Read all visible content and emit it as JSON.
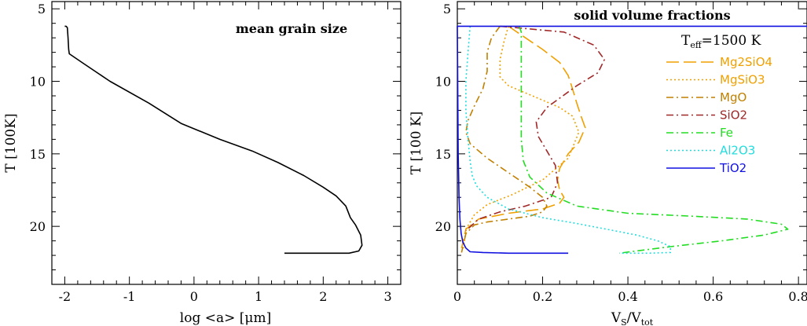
{
  "chart_data": [
    {
      "type": "line",
      "title": "mean grain size",
      "xlabel": "log <a> [μm]",
      "ylabel": "T [100K]",
      "xlim": [
        -2.2,
        3.2
      ],
      "ylim": [
        24,
        4.5
      ],
      "y_inverted": true,
      "xticks": [
        -2,
        -1,
        0,
        1,
        2,
        3
      ],
      "yticks": [
        5,
        10,
        15,
        20
      ],
      "grid": false,
      "series": [
        {
          "color": "#000000",
          "dash": "solid",
          "x": [
            -2.0,
            -1.98,
            -1.96,
            -1.95,
            -1.94,
            -1.93,
            -1.7,
            -1.3,
            -0.7,
            -0.2,
            0.4,
            0.9,
            1.3,
            1.7,
            2.0,
            2.2,
            2.35,
            2.42,
            2.5,
            2.58,
            2.6,
            2.55,
            2.4,
            2.0,
            1.4
          ],
          "y": [
            6.2,
            6.2,
            6.3,
            7.0,
            7.8,
            8.1,
            8.8,
            10.0,
            11.5,
            12.9,
            14.0,
            14.8,
            15.6,
            16.5,
            17.3,
            17.9,
            18.6,
            19.4,
            19.9,
            20.6,
            21.3,
            21.7,
            21.85,
            21.85,
            21.85
          ]
        }
      ]
    },
    {
      "type": "line",
      "title": "solid volume fractions",
      "annotation": "T_eff=1500 K",
      "annotation_main": "T",
      "annotation_sub": "eff",
      "annotation_rest": "=1500 K",
      "xlabel": "V_S/V_tot",
      "xlabel_main": "V",
      "xlabel_sub1": "S",
      "xlabel_mid": "/V",
      "xlabel_sub2": "tot",
      "ylabel": "T [100 K]",
      "xlim": [
        0,
        0.82
      ],
      "ylim": [
        24,
        4.5
      ],
      "y_inverted": true,
      "xticks": [
        0,
        0.2,
        0.4,
        0.6,
        0.8
      ],
      "yticks": [
        5,
        10,
        15,
        20
      ],
      "legend_position": "right",
      "grid": false,
      "series": [
        {
          "name": "Mg2SiO4",
          "color": "#f0a000",
          "dash": "longdash",
          "x": [
            0.12,
            0.16,
            0.2,
            0.24,
            0.26,
            0.27,
            0.28,
            0.29,
            0.3,
            0.285,
            0.26,
            0.24,
            0.235,
            0.24,
            0.25,
            0.24,
            0.2,
            0.12,
            0.05,
            0.02,
            0.01
          ],
          "y": [
            6.2,
            7.0,
            7.8,
            8.7,
            9.6,
            10.5,
            11.5,
            12.4,
            13.2,
            14.2,
            15.0,
            16.0,
            16.8,
            17.5,
            18.0,
            18.4,
            18.8,
            19.1,
            19.5,
            20.2,
            21.5
          ]
        },
        {
          "name": "MgSiO3",
          "color": "#f0a000",
          "dash": "dotted",
          "x": [
            0.12,
            0.11,
            0.1,
            0.1,
            0.12,
            0.16,
            0.2,
            0.24,
            0.27,
            0.285,
            0.26,
            0.2,
            0.13,
            0.07,
            0.04,
            0.02,
            0.015
          ],
          "y": [
            6.2,
            7.2,
            8.5,
            9.7,
            10.3,
            10.8,
            11.3,
            11.8,
            12.4,
            13.5,
            15.3,
            16.8,
            17.8,
            18.5,
            19.2,
            20.2,
            21.5
          ]
        },
        {
          "name": "MgO",
          "color": "#c08000",
          "dash": "dashdot",
          "x": [
            0.1,
            0.08,
            0.07,
            0.07,
            0.06,
            0.04,
            0.025,
            0.02,
            0.03,
            0.07,
            0.12,
            0.17,
            0.2,
            0.21,
            0.2,
            0.17,
            0.12,
            0.07,
            0.04,
            0.02,
            0.01
          ],
          "y": [
            6.2,
            7.0,
            8.0,
            9.3,
            10.5,
            11.7,
            12.7,
            13.5,
            14.3,
            15.3,
            16.3,
            17.3,
            18.0,
            18.6,
            19.0,
            19.3,
            19.5,
            19.7,
            19.9,
            20.5,
            21.8
          ]
        },
        {
          "name": "SiO2",
          "color": "#a02828",
          "dash": "dashdot",
          "x": [
            0.1,
            0.25,
            0.32,
            0.345,
            0.33,
            0.28,
            0.21,
            0.185,
            0.19,
            0.21,
            0.23,
            0.235,
            0.22,
            0.16,
            0.1,
            0.05,
            0.02
          ],
          "y": [
            6.2,
            6.6,
            7.5,
            8.5,
            9.4,
            10.3,
            11.8,
            12.8,
            13.8,
            14.8,
            15.8,
            17.0,
            18.0,
            18.6,
            19.0,
            19.5,
            20.3
          ]
        },
        {
          "name": "Fe",
          "color": "#22dd22",
          "dash": "dashdot",
          "x": [
            0.145,
            0.15,
            0.15,
            0.15,
            0.15,
            0.15,
            0.155,
            0.17,
            0.21,
            0.28,
            0.4,
            0.55,
            0.68,
            0.76,
            0.775,
            0.72,
            0.62,
            0.5,
            0.42,
            0.38
          ],
          "y": [
            6.2,
            6.6,
            8.0,
            10.0,
            12.0,
            14.0,
            15.5,
            16.6,
            17.7,
            18.6,
            19.1,
            19.3,
            19.5,
            19.85,
            20.2,
            20.6,
            21.0,
            21.4,
            21.7,
            21.85
          ]
        },
        {
          "name": "Al2O3",
          "color": "#22dddd",
          "dash": "dotted",
          "x": [
            0.03,
            0.025,
            0.02,
            0.02,
            0.025,
            0.03,
            0.035,
            0.045,
            0.07,
            0.12,
            0.2,
            0.28,
            0.35,
            0.42,
            0.47,
            0.5,
            0.5,
            0.45,
            0.38
          ],
          "y": [
            6.2,
            8.0,
            10.0,
            12.0,
            14.0,
            15.5,
            16.5,
            17.2,
            18.0,
            18.8,
            19.4,
            19.8,
            20.2,
            20.6,
            21.0,
            21.4,
            21.8,
            21.85,
            21.85
          ]
        },
        {
          "name": "TiO2",
          "color": "#1010e0",
          "dash": "solid",
          "x": [
            0.82,
            0.0,
            0.002,
            0.004,
            0.006,
            0.009,
            0.013,
            0.02,
            0.03,
            0.06,
            0.12,
            0.2,
            0.26
          ],
          "y": [
            6.2,
            6.2,
            15.0,
            18.0,
            19.5,
            20.5,
            21.1,
            21.5,
            21.75,
            21.8,
            21.85,
            21.85,
            21.85
          ]
        }
      ]
    }
  ]
}
